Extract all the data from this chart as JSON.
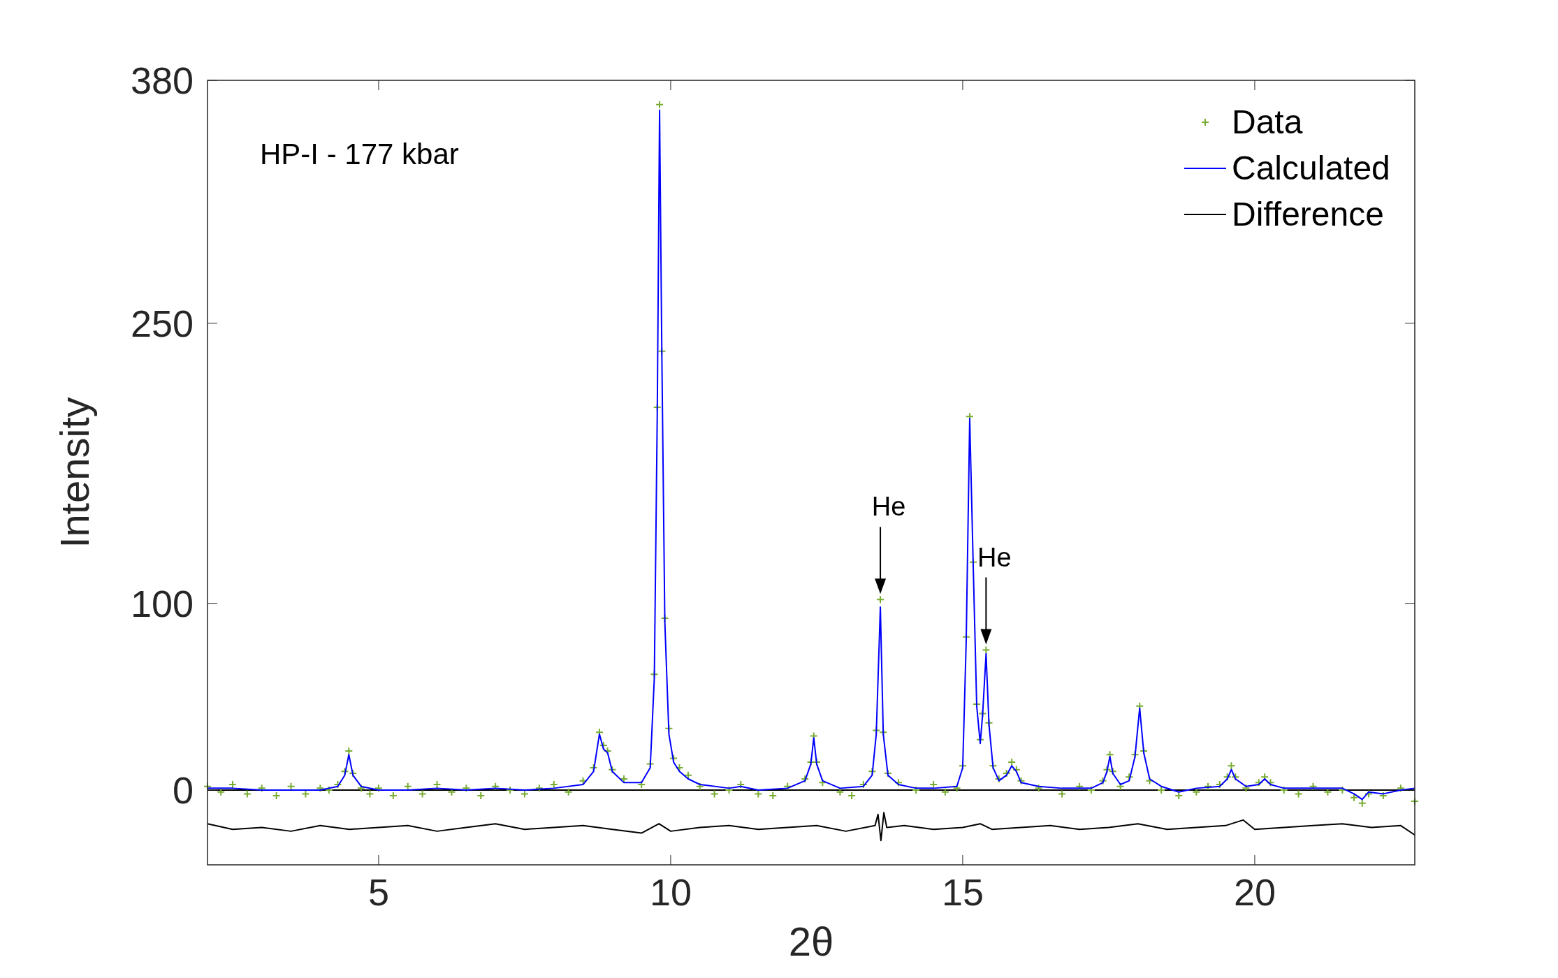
{
  "chart_data": {
    "type": "line",
    "xlabel": "2θ",
    "ylabel": "Intensity",
    "xlim": [
      2.07,
      22.74
    ],
    "ylim": [
      -40,
      380
    ],
    "xticks": [
      5,
      10,
      15,
      20
    ],
    "yticks": [
      0,
      100,
      250,
      380
    ],
    "grid": false,
    "legend": "top right",
    "line_style": "solid",
    "annotations": [
      "HP-I - 177 kbar",
      {
        "text": "He",
        "x": 13.59,
        "y": 102
      },
      {
        "text": "He",
        "x": 15.4,
        "y": 75
      }
    ],
    "ref_lines": [
      {
        "axis": "y",
        "value": 0,
        "color": "#000000"
      }
    ],
    "series": [
      {
        "name": "Data",
        "type": "scatter",
        "marker": "cross",
        "color": "#77ac30",
        "x": [
          2.07,
          2.3,
          2.5,
          2.75,
          3.0,
          3.25,
          3.5,
          3.75,
          4.0,
          4.15,
          4.3,
          4.42,
          4.49,
          4.56,
          4.7,
          4.85,
          5.0,
          5.25,
          5.5,
          5.75,
          6.0,
          6.25,
          6.5,
          6.75,
          7.0,
          7.25,
          7.5,
          7.75,
          8.0,
          8.25,
          8.5,
          8.68,
          8.78,
          8.85,
          8.92,
          9.0,
          9.2,
          9.5,
          9.65,
          9.72,
          9.77,
          9.81,
          9.85,
          9.9,
          9.97,
          10.05,
          10.15,
          10.3,
          10.5,
          10.75,
          11.0,
          11.2,
          11.5,
          11.75,
          12.0,
          12.3,
          12.4,
          12.45,
          12.5,
          12.6,
          12.9,
          13.1,
          13.3,
          13.45,
          13.52,
          13.59,
          13.64,
          13.72,
          13.9,
          14.2,
          14.5,
          14.7,
          14.9,
          15.0,
          15.06,
          15.12,
          15.18,
          15.24,
          15.3,
          15.34,
          15.4,
          15.45,
          15.52,
          15.62,
          15.75,
          15.84,
          15.92,
          16.0,
          16.3,
          16.7,
          17.0,
          17.2,
          17.4,
          17.47,
          17.52,
          17.57,
          17.7,
          17.85,
          17.95,
          18.03,
          18.1,
          18.2,
          18.4,
          18.7,
          19.0,
          19.2,
          19.4,
          19.53,
          19.6,
          19.67,
          19.85,
          20.07,
          20.17,
          20.27,
          20.5,
          20.75,
          21.0,
          21.25,
          21.5,
          21.7,
          21.84,
          21.95,
          22.2,
          22.5,
          22.74
        ],
        "values": [
          2,
          -1,
          3,
          -2,
          1,
          -3,
          2,
          -2,
          1,
          0,
          3,
          10,
          21,
          9,
          1,
          -2,
          1,
          -3,
          2,
          -2,
          3,
          -1,
          1,
          -3,
          2,
          0,
          -2,
          1,
          3,
          -1,
          5,
          12,
          31,
          24,
          21,
          11,
          6,
          3,
          14,
          62,
          205,
          367,
          235,
          92,
          33,
          17,
          12,
          8,
          2,
          -2,
          0,
          3,
          -2,
          -3,
          2,
          6,
          15,
          29,
          15,
          4,
          -1,
          -3,
          3,
          10,
          32,
          102,
          31,
          9,
          4,
          0,
          3,
          -1,
          1,
          13,
          82,
          200,
          122,
          46,
          27,
          41,
          75,
          36,
          13,
          6,
          9,
          15,
          11,
          5,
          1,
          -2,
          2,
          0,
          5,
          11,
          19,
          10,
          2,
          7,
          19,
          45,
          21,
          5,
          0,
          -3,
          -1,
          2,
          3,
          7,
          13,
          7,
          1,
          4,
          7,
          4,
          0,
          -2,
          2,
          -1,
          0,
          -4,
          -7,
          -2,
          -3,
          1,
          -6
        ]
      },
      {
        "name": "Calculated",
        "color": "#0000ff",
        "x": [
          2.07,
          2.5,
          3.0,
          3.5,
          4.0,
          4.3,
          4.42,
          4.49,
          4.56,
          4.7,
          5.0,
          5.5,
          6.0,
          6.5,
          7.0,
          7.5,
          8.0,
          8.5,
          8.68,
          8.78,
          8.85,
          8.92,
          9.0,
          9.2,
          9.5,
          9.65,
          9.72,
          9.77,
          9.81,
          9.85,
          9.9,
          9.97,
          10.05,
          10.15,
          10.3,
          10.5,
          11.0,
          11.2,
          11.5,
          12.0,
          12.3,
          12.4,
          12.45,
          12.5,
          12.6,
          12.9,
          13.3,
          13.45,
          13.52,
          13.59,
          13.64,
          13.72,
          13.9,
          14.2,
          14.5,
          14.9,
          15.0,
          15.06,
          15.12,
          15.18,
          15.24,
          15.3,
          15.34,
          15.4,
          15.45,
          15.52,
          15.62,
          15.75,
          15.84,
          15.92,
          16.0,
          16.3,
          16.7,
          17.2,
          17.4,
          17.47,
          17.52,
          17.57,
          17.7,
          17.85,
          17.95,
          18.03,
          18.1,
          18.2,
          18.4,
          18.7,
          19.0,
          19.4,
          19.53,
          19.6,
          19.67,
          19.85,
          20.07,
          20.17,
          20.27,
          20.5,
          21.0,
          21.5,
          21.7,
          21.84,
          21.95,
          22.2,
          22.5,
          22.74
        ],
        "values": [
          1,
          1,
          0,
          0,
          0,
          2,
          8,
          19,
          8,
          2,
          0,
          0,
          1,
          0,
          1,
          0,
          1,
          3,
          10,
          30,
          22,
          20,
          10,
          4,
          4,
          12,
          60,
          200,
          364,
          230,
          90,
          30,
          15,
          10,
          6,
          3,
          1,
          2,
          0,
          1,
          5,
          14,
          28,
          14,
          5,
          1,
          2,
          8,
          30,
          98,
          30,
          8,
          3,
          1,
          1,
          2,
          12,
          80,
          199,
          120,
          45,
          25,
          40,
          73,
          35,
          12,
          5,
          8,
          13,
          10,
          4,
          2,
          1,
          1,
          4,
          10,
          18,
          9,
          3,
          5,
          18,
          44,
          20,
          6,
          2,
          -1,
          1,
          2,
          6,
          11,
          6,
          2,
          3,
          6,
          3,
          1,
          1,
          1,
          -2,
          -5,
          -1,
          -2,
          0,
          1
        ]
      },
      {
        "name": "Difference",
        "color": "#000000",
        "x": [
          2.07,
          2.5,
          3.0,
          3.5,
          4.0,
          4.5,
          5.0,
          5.5,
          6.0,
          6.5,
          7.0,
          7.5,
          8.0,
          8.5,
          9.0,
          9.5,
          9.8,
          10.0,
          10.5,
          11.0,
          11.5,
          12.0,
          12.5,
          13.0,
          13.5,
          13.55,
          13.6,
          13.65,
          13.7,
          14.0,
          14.5,
          15.0,
          15.3,
          15.5,
          16.0,
          16.5,
          17.0,
          17.5,
          18.0,
          18.5,
          19.0,
          19.5,
          19.8,
          20.0,
          20.5,
          21.0,
          21.5,
          22.0,
          22.5,
          22.74
        ],
        "values": [
          -18,
          -21,
          -20,
          -22,
          -19,
          -21,
          -20,
          -19,
          -22,
          -20,
          -18,
          -21,
          -20,
          -19,
          -21,
          -23,
          -18,
          -22,
          -20,
          -19,
          -21,
          -20,
          -19,
          -22,
          -19,
          -13,
          -27,
          -12,
          -20,
          -19,
          -21,
          -20,
          -18,
          -21,
          -20,
          -19,
          -21,
          -20,
          -18,
          -21,
          -20,
          -19,
          -16,
          -21,
          -20,
          -19,
          -18,
          -20,
          -19,
          -24
        ]
      }
    ]
  }
}
